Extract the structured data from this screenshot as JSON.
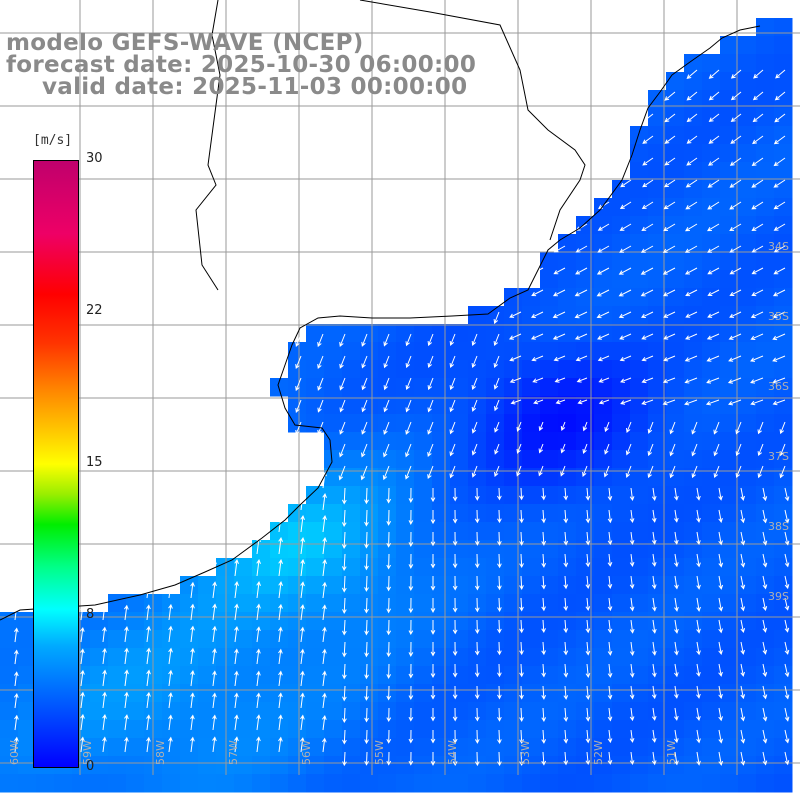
{
  "title": {
    "model": "modelo GEFS-WAVE (NCEP)",
    "forecast": "forecast date: 2025-10-30 06:00:00",
    "valid": "valid date: 2025-11-03 00:00:00"
  },
  "colorbar": {
    "unit": "[m/s]",
    "ticks": [
      "30",
      "22",
      "15",
      "8",
      "0"
    ],
    "colors": [
      "#0000ff",
      "#0066ff",
      "#00aaff",
      "#00ffff",
      "#00ff88",
      "#00ee00",
      "#ffff00",
      "#ff8800",
      "#ff0000",
      "#c0006c"
    ],
    "range": [
      0,
      30
    ]
  },
  "map": {
    "land_color": "#ffffff",
    "grid": true,
    "lat_labels": [
      "34S",
      "35S",
      "36S",
      "37S",
      "38S",
      "39S"
    ],
    "lon_labels": [
      "60W",
      "59W",
      "58W",
      "57W",
      "56W",
      "55W",
      "54W",
      "53W",
      "52W",
      "51W"
    ]
  }
}
